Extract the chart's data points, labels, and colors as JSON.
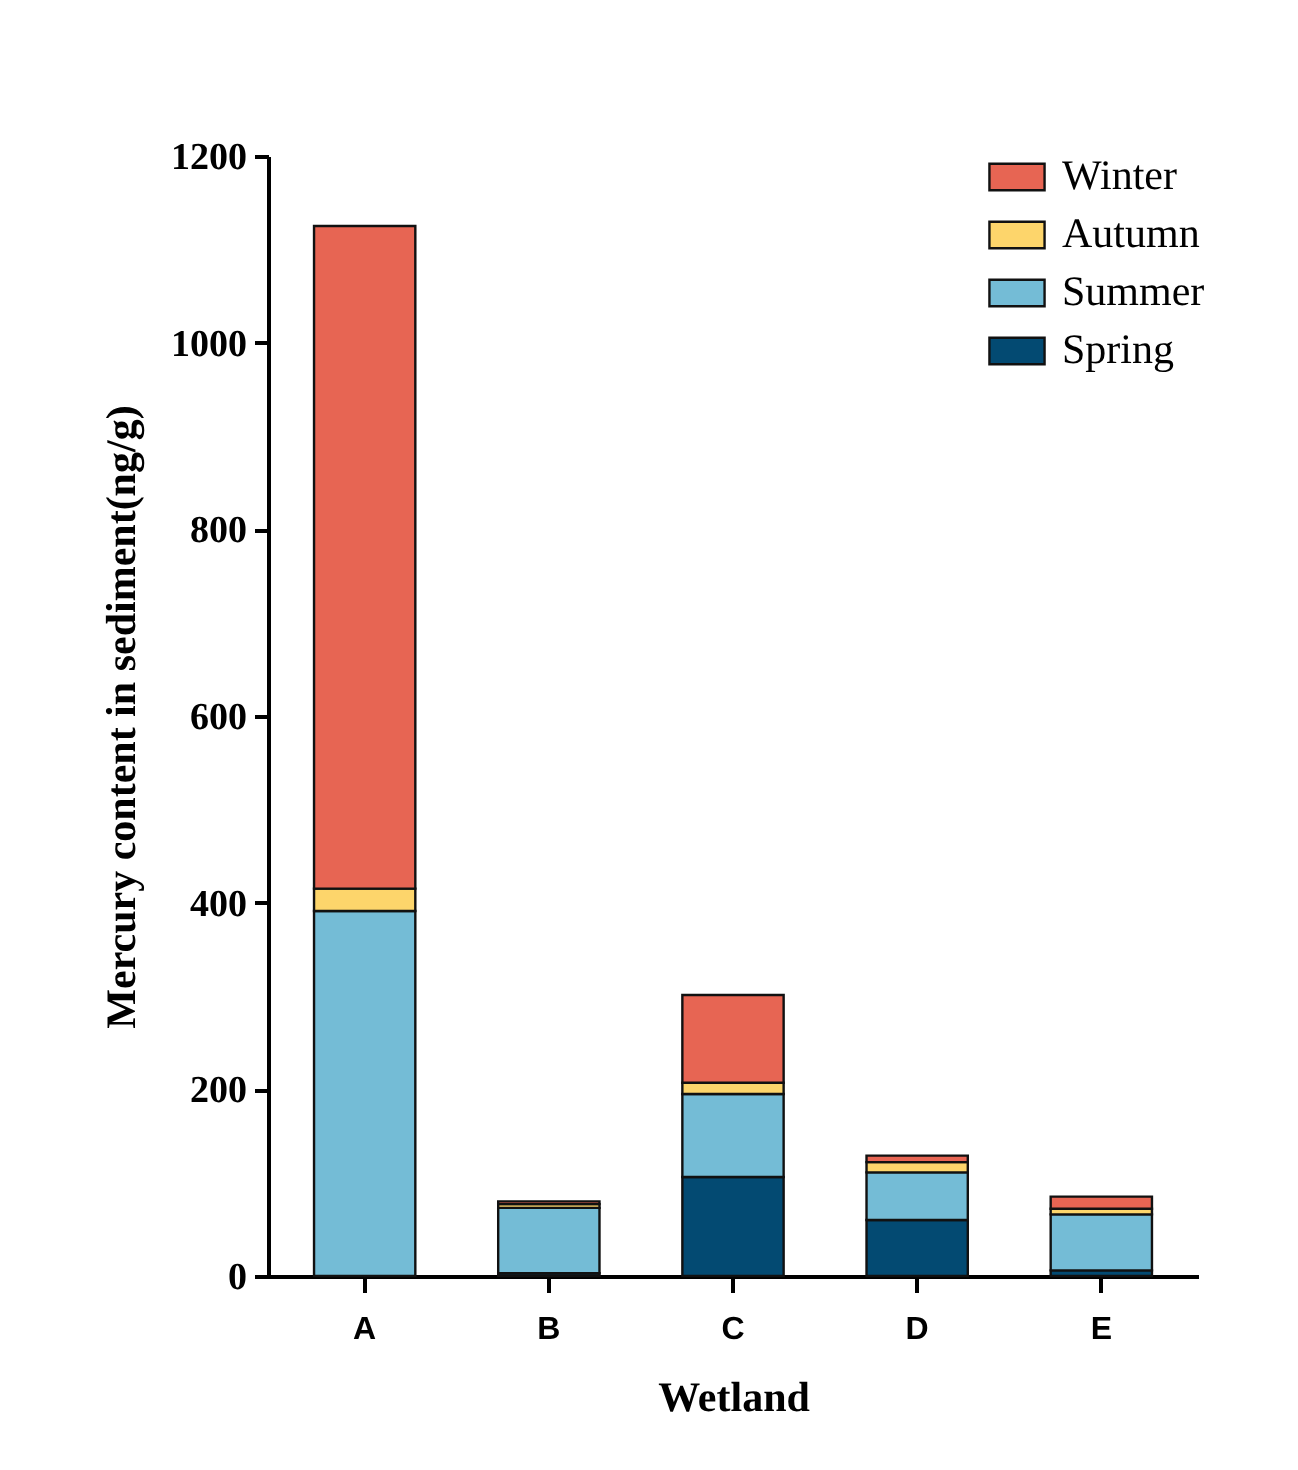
{
  "chart_data": {
    "type": "bar",
    "stacked": true,
    "xlabel": "Wetland",
    "ylabel": "Mercury content in sediment(ng/g)",
    "categories": [
      "A",
      "B",
      "C",
      "D",
      "E"
    ],
    "series": [
      {
        "name": "Spring",
        "color": "#034a72",
        "values": [
          null,
          3,
          106,
          60,
          6
        ]
      },
      {
        "name": "Summer",
        "color": "#74bcd6",
        "values": [
          391,
          70,
          89,
          51,
          60
        ]
      },
      {
        "name": "Autumn",
        "color": "#fdd56b",
        "values": [
          24,
          4,
          12,
          11,
          6
        ]
      },
      {
        "name": "Winter",
        "color": "#e76553",
        "values": [
          710,
          3,
          94,
          7,
          13
        ]
      }
    ],
    "ylim": [
      0,
      1200
    ],
    "yticks": [
      0,
      200,
      400,
      600,
      800,
      1000,
      1200
    ],
    "grid": false,
    "legend": "top right"
  }
}
